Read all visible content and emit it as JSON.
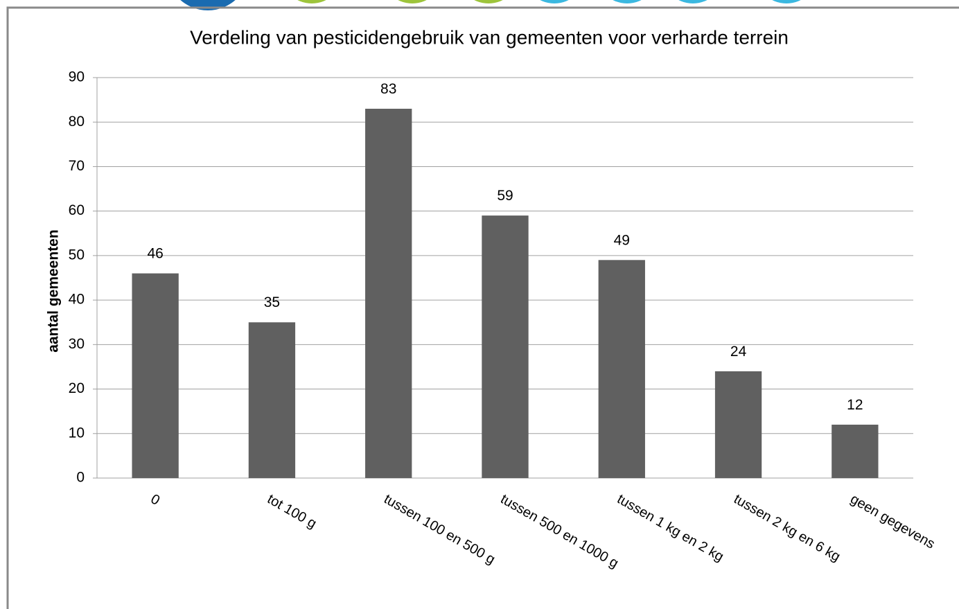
{
  "chart_data": {
    "type": "bar",
    "title": "Verdeling van pesticidengebruik van gemeenten voor verharde terrein",
    "y_label": "aantal gemeenten",
    "categories": [
      "0",
      "tot 100 g",
      "tussen 100 en 500 g",
      "tussen 500 en 1000 g",
      "tussen 1 kg en 2 kg",
      "tussen 2 kg en 6 kg",
      "geen gegevens"
    ],
    "values": [
      46,
      35,
      83,
      59,
      49,
      24,
      12
    ],
    "color": "#606060",
    "ylim": [
      0,
      90
    ],
    "yticks": [
      0,
      10,
      20,
      30,
      40,
      50,
      60,
      70,
      80,
      90
    ],
    "grid": true
  }
}
